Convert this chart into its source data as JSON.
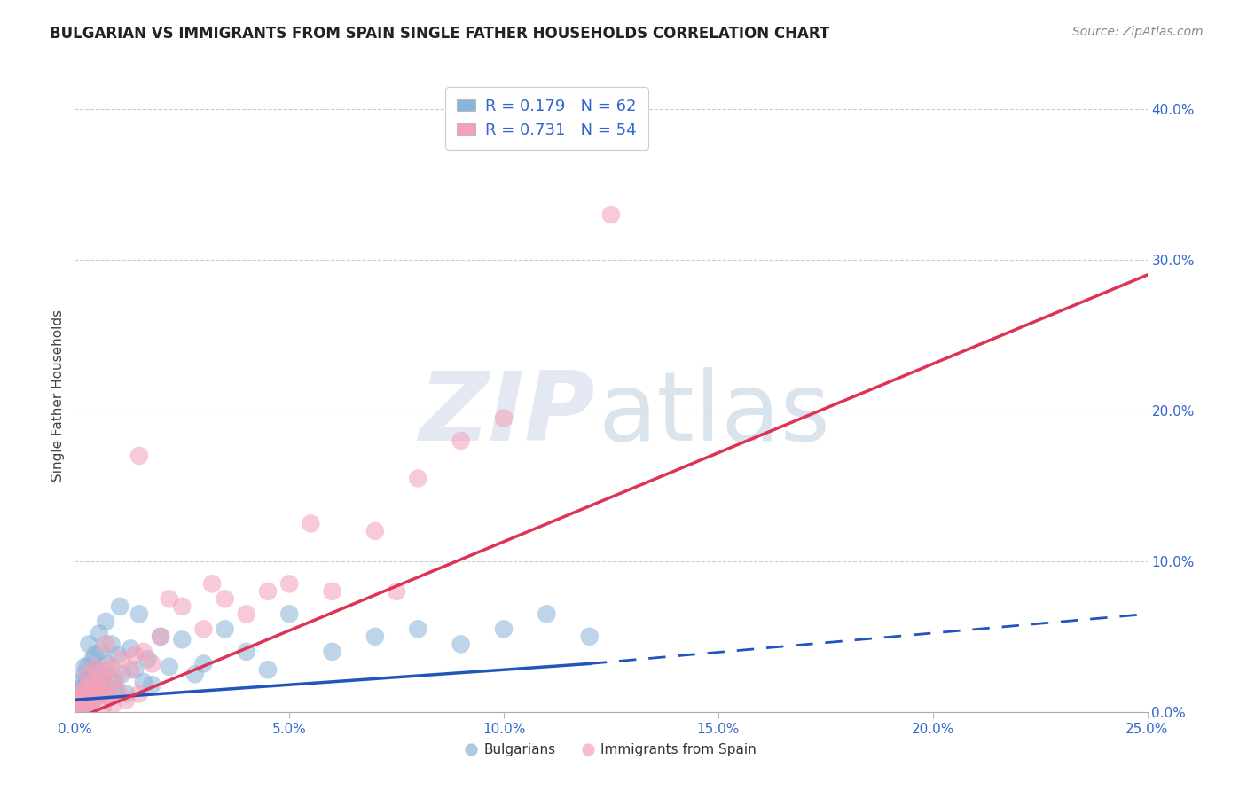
{
  "title": "BULGARIAN VS IMMIGRANTS FROM SPAIN SINGLE FATHER HOUSEHOLDS CORRELATION CHART",
  "source": "Source: ZipAtlas.com",
  "ylabel": "Single Father Households",
  "xlim": [
    0.0,
    25.0
  ],
  "ylim": [
    0.0,
    42.0
  ],
  "xlabel_vals": [
    0.0,
    5.0,
    10.0,
    15.0,
    20.0,
    25.0
  ],
  "ylabel_vals": [
    0.0,
    10.0,
    20.0,
    30.0,
    40.0
  ],
  "blue_color": "#8ab4d8",
  "pink_color": "#f4a0b8",
  "blue_line_color": "#2255bb",
  "pink_line_color": "#dd3355",
  "blue_R": 0.179,
  "blue_N": 62,
  "pink_R": 0.731,
  "pink_N": 54,
  "blue_line_x0": 0.0,
  "blue_line_y0": 0.8,
  "blue_line_x1": 12.0,
  "blue_line_y1": 3.2,
  "blue_dash_x0": 12.0,
  "blue_dash_y0": 3.2,
  "blue_dash_x1": 25.0,
  "blue_dash_y1": 6.5,
  "pink_line_x0": 0.0,
  "pink_line_y0": -0.5,
  "pink_line_x1": 25.0,
  "pink_line_y1": 29.0,
  "blue_scatter_x": [
    0.05,
    0.08,
    0.1,
    0.12,
    0.15,
    0.18,
    0.2,
    0.22,
    0.25,
    0.28,
    0.3,
    0.32,
    0.35,
    0.38,
    0.4,
    0.42,
    0.45,
    0.5,
    0.55,
    0.6,
    0.65,
    0.7,
    0.75,
    0.8,
    0.85,
    0.9,
    0.95,
    1.0,
    1.1,
    1.2,
    1.3,
    1.4,
    1.5,
    1.6,
    1.7,
    1.8,
    2.0,
    2.2,
    2.5,
    2.8,
    3.0,
    3.5,
    4.0,
    4.5,
    5.0,
    6.0,
    7.0,
    8.0,
    9.0,
    10.0,
    11.0,
    12.0,
    0.07,
    0.14,
    0.17,
    0.23,
    0.27,
    0.33,
    0.47,
    0.57,
    0.72,
    1.05
  ],
  "blue_scatter_y": [
    0.5,
    1.0,
    1.5,
    0.3,
    2.0,
    0.8,
    1.2,
    2.5,
    0.6,
    1.8,
    3.0,
    1.0,
    0.4,
    2.2,
    1.5,
    3.5,
    0.8,
    2.8,
    1.2,
    4.0,
    1.8,
    2.5,
    3.2,
    1.0,
    4.5,
    2.0,
    1.5,
    3.8,
    2.5,
    1.2,
    4.2,
    2.8,
    6.5,
    2.0,
    3.5,
    1.8,
    5.0,
    3.0,
    4.8,
    2.5,
    3.2,
    5.5,
    4.0,
    2.8,
    6.5,
    4.0,
    5.0,
    5.5,
    4.5,
    5.5,
    6.5,
    5.0,
    0.2,
    1.5,
    0.7,
    3.0,
    2.0,
    4.5,
    3.8,
    5.2,
    6.0,
    7.0
  ],
  "pink_scatter_x": [
    0.05,
    0.1,
    0.15,
    0.18,
    0.2,
    0.25,
    0.3,
    0.35,
    0.4,
    0.45,
    0.5,
    0.55,
    0.6,
    0.65,
    0.7,
    0.75,
    0.8,
    0.85,
    0.9,
    0.95,
    1.0,
    1.1,
    1.2,
    1.3,
    1.5,
    1.6,
    1.8,
    2.0,
    2.5,
    3.0,
    3.5,
    4.0,
    4.5,
    5.0,
    6.0,
    7.0,
    8.0,
    9.0,
    10.0,
    0.07,
    0.12,
    0.22,
    0.28,
    0.38,
    0.48,
    0.58,
    0.72,
    1.4,
    2.2,
    3.2,
    5.5,
    7.5,
    12.5,
    1.5
  ],
  "pink_scatter_y": [
    0.3,
    0.8,
    0.5,
    1.2,
    0.6,
    1.5,
    0.4,
    1.8,
    0.8,
    2.0,
    1.0,
    2.5,
    1.2,
    0.3,
    1.8,
    2.8,
    1.0,
    3.0,
    0.5,
    2.2,
    1.5,
    3.5,
    0.8,
    2.8,
    1.2,
    4.0,
    3.2,
    5.0,
    7.0,
    5.5,
    7.5,
    6.5,
    8.0,
    8.5,
    8.0,
    12.0,
    15.5,
    18.0,
    19.5,
    0.2,
    1.0,
    1.5,
    2.5,
    0.8,
    3.0,
    1.8,
    4.5,
    3.8,
    7.5,
    8.5,
    12.5,
    8.0,
    33.0,
    17.0
  ]
}
